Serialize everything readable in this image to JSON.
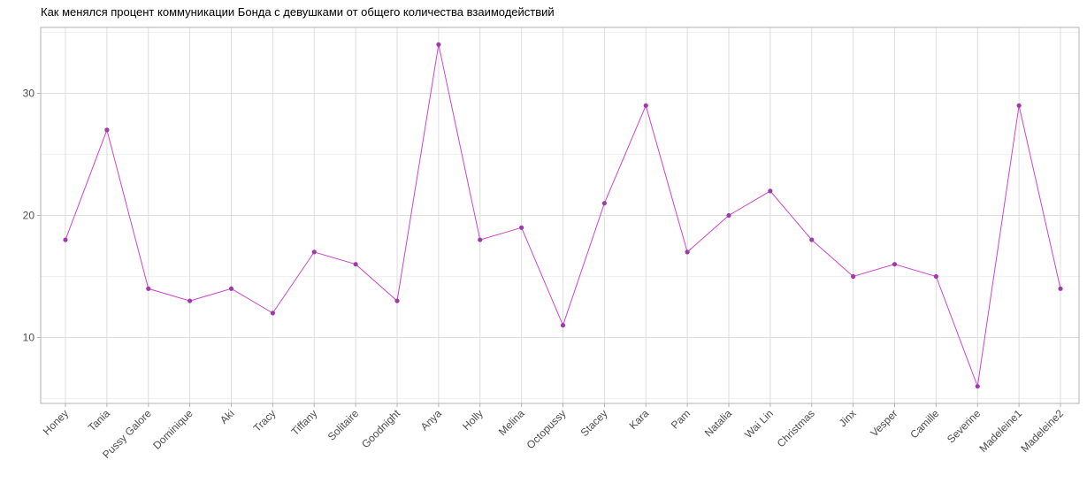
{
  "chart_data": {
    "type": "line",
    "title": "Как менялся процент коммуникации Бонда с девушками от общего количества взаимодействий",
    "xlabel": "",
    "ylabel": "",
    "categories": [
      "Honey",
      "Tania",
      "Pussy Galore",
      "Dominique",
      "Aki",
      "Tracy",
      "Tiffany",
      "Solitaire",
      "Goodnight",
      "Anya",
      "Holly",
      "Melina",
      "Octopussy",
      "Stacey",
      "Kara",
      "Pam",
      "Natalia",
      "Wai Lin",
      "Christmas",
      "Jinx",
      "Vesper",
      "Camille",
      "Severine",
      "Madeleine1",
      "Madeleine2"
    ],
    "series": [
      {
        "values": [
          18,
          27,
          14,
          13,
          14,
          12,
          17,
          16,
          13,
          34,
          18,
          19,
          11,
          21,
          29,
          17,
          20,
          22,
          18,
          15,
          16,
          15,
          6,
          29,
          14
        ]
      }
    ],
    "y_ticks": [
      10,
      20,
      30
    ],
    "ylim": [
      4.6,
      35.4
    ],
    "grid": true,
    "line_color": "#cc44cc",
    "point_color": "#a03aa8",
    "legend": "none"
  }
}
